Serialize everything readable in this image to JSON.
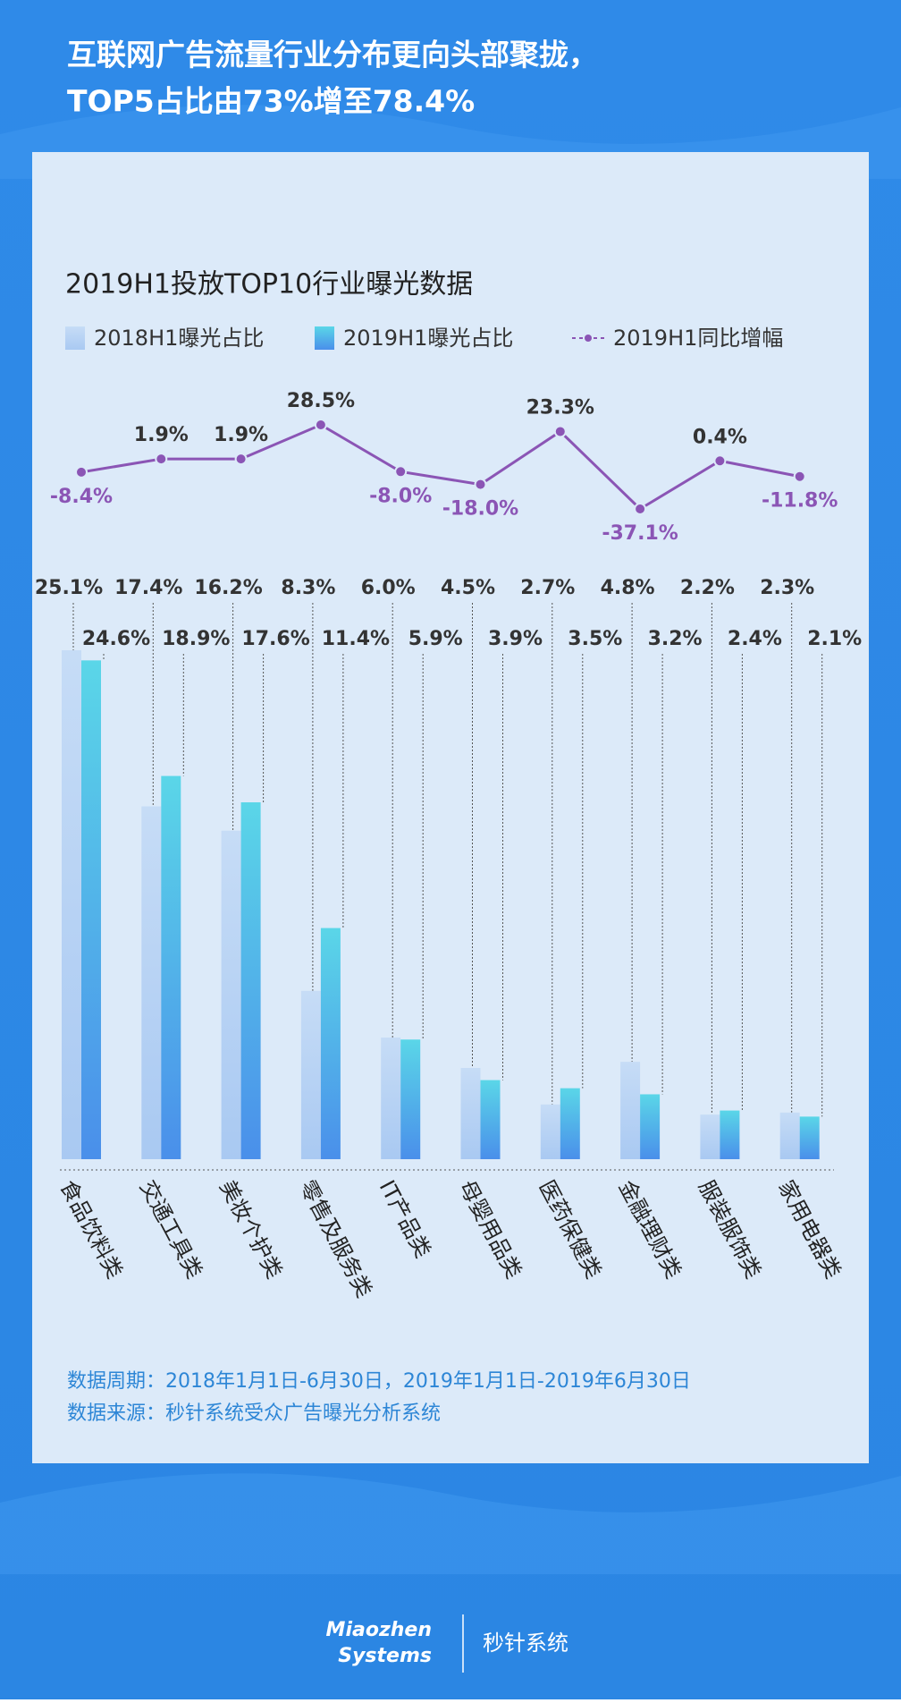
{
  "headline": [
    "互联网广告流量行业分布更向头部聚拢，",
    "TOP5占比由73%增至78.4%"
  ],
  "chart_data": {
    "type": "bar",
    "title": "2019H1投放TOP10行业曝光数据",
    "categories": [
      "食品饮料类",
      "交通工具类",
      "美妆个护类",
      "零售及服务类",
      "IT产品类",
      "母婴用品类",
      "医药保健类",
      "金融理财类",
      "服装服饰类",
      "家用电器类"
    ],
    "series": [
      {
        "name": "2018H1曝光占比",
        "color": "#bcd6f4",
        "values": [
          25.1,
          17.4,
          16.2,
          8.3,
          6.0,
          4.5,
          2.7,
          4.8,
          2.2,
          2.3
        ],
        "value_labels": [
          "25.1%",
          "17.4%",
          "16.2%",
          "8.3%",
          "6.0%",
          "4.5%",
          "2.7%",
          "4.8%",
          "2.2%",
          "2.3%"
        ]
      },
      {
        "name": "2019H1曝光占比",
        "color": "#4fc3ea",
        "values": [
          24.6,
          18.9,
          17.6,
          11.4,
          5.9,
          3.9,
          3.5,
          3.2,
          2.4,
          2.1
        ],
        "value_labels": [
          "24.6%",
          "18.9%",
          "17.6%",
          "11.4%",
          "5.9%",
          "3.9%",
          "3.5%",
          "3.2%",
          "2.4%",
          "2.1%"
        ]
      },
      {
        "name": "2019H1同比增幅",
        "type": "line",
        "axis": "y2",
        "color": "#8b55b5",
        "values": [
          -8.4,
          1.9,
          1.9,
          28.5,
          -8.0,
          -18.0,
          23.3,
          -37.1,
          0.4,
          -11.8
        ],
        "value_labels": [
          "-8.4%",
          "1.9%",
          "1.9%",
          "28.5%",
          "-8.0%",
          "-18.0%",
          "23.3%",
          "-37.1%",
          "0.4%",
          "-11.8%"
        ]
      }
    ]
  },
  "notes": [
    "数据周期：2018年1月1日-6月30日，2019年1月1日-2019年6月30日",
    "数据来源：秒针系统受众广告曝光分析系统"
  ],
  "footer": {
    "logo": [
      "Miaozhen",
      "Systems"
    ],
    "brand": "秒针系统"
  }
}
